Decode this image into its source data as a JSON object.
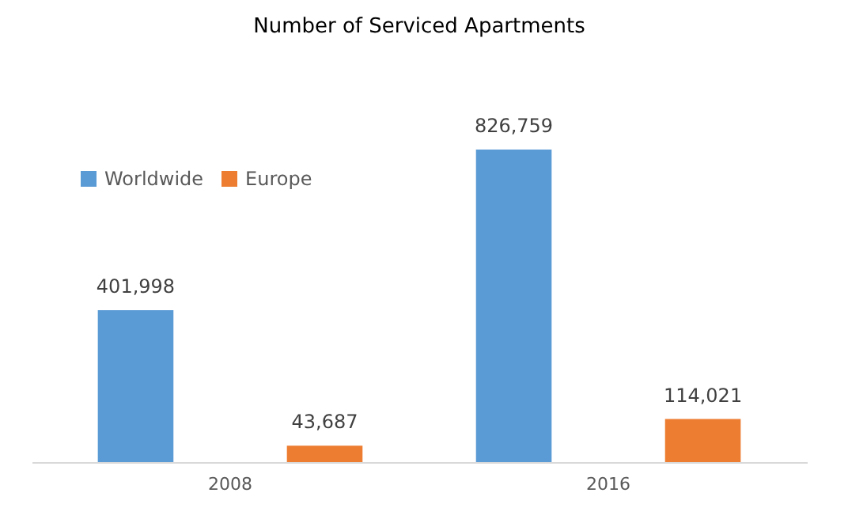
{
  "chart_data": {
    "type": "bar",
    "title": "Number of Serviced Apartments",
    "categories": [
      "2008",
      "2016"
    ],
    "series": [
      {
        "name": "Worldwide",
        "color": "#5b9bd5",
        "values": [
          401998,
          826759
        ],
        "value_labels": [
          "401,998",
          "826,759"
        ]
      },
      {
        "name": "Europe",
        "color": "#ed7d31",
        "values": [
          43687,
          114021
        ],
        "value_labels": [
          "43,687",
          "114,021"
        ]
      }
    ],
    "legend": "top left",
    "grid": false
  }
}
